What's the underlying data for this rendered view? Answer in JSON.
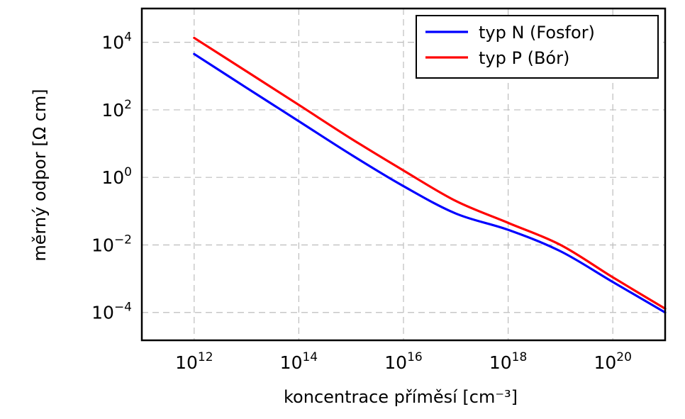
{
  "chart_data": {
    "type": "line",
    "title": "",
    "xlabel": "koncentrace příměsí [cm⁻³]",
    "ylabel": "měrný odpor [Ω cm]",
    "x_scale": "log",
    "y_scale": "log",
    "xlim": [
      100000000000.0,
      1e+21
    ],
    "ylim": [
      1.5e-05,
      100000.0
    ],
    "grid": true,
    "legend_position": "top-right",
    "x_ticks": [
      {
        "value": 1000000000000.0,
        "base": "10",
        "exp": "12"
      },
      {
        "value": 100000000000000.0,
        "base": "10",
        "exp": "14"
      },
      {
        "value": 1e+16,
        "base": "10",
        "exp": "16"
      },
      {
        "value": 1e+18,
        "base": "10",
        "exp": "18"
      },
      {
        "value": 1e+20,
        "base": "10",
        "exp": "20"
      }
    ],
    "y_ticks": [
      {
        "value": 10000.0,
        "base": "10",
        "exp": "4"
      },
      {
        "value": 100.0,
        "base": "10",
        "exp": "2"
      },
      {
        "value": 1.0,
        "base": "10",
        "exp": "0"
      },
      {
        "value": 0.01,
        "base": "10",
        "exp": "−2"
      },
      {
        "value": 0.0001,
        "base": "10",
        "exp": "−4"
      }
    ],
    "series": [
      {
        "name": "typ N (Fosfor)",
        "color": "#0000ff",
        "x": [
          1000000000000.0,
          10000000000000.0,
          100000000000000.0,
          1000000000000000.0,
          1e+16,
          1e+17,
          1e+18,
          1e+19,
          1e+20,
          1e+21
        ],
        "y": [
          4500,
          450,
          46,
          4.7,
          0.55,
          0.085,
          0.028,
          0.0065,
          0.0008,
          0.0001
        ]
      },
      {
        "name": "typ P (Bór)",
        "color": "#ff0000",
        "x": [
          1000000000000.0,
          10000000000000.0,
          100000000000000.0,
          1000000000000000.0,
          1e+16,
          1e+17,
          1e+18,
          1e+19,
          1e+20,
          1e+21
        ],
        "y": [
          13500,
          1380,
          140,
          14,
          1.6,
          0.2,
          0.045,
          0.01,
          0.0011,
          0.00013
        ]
      }
    ]
  }
}
